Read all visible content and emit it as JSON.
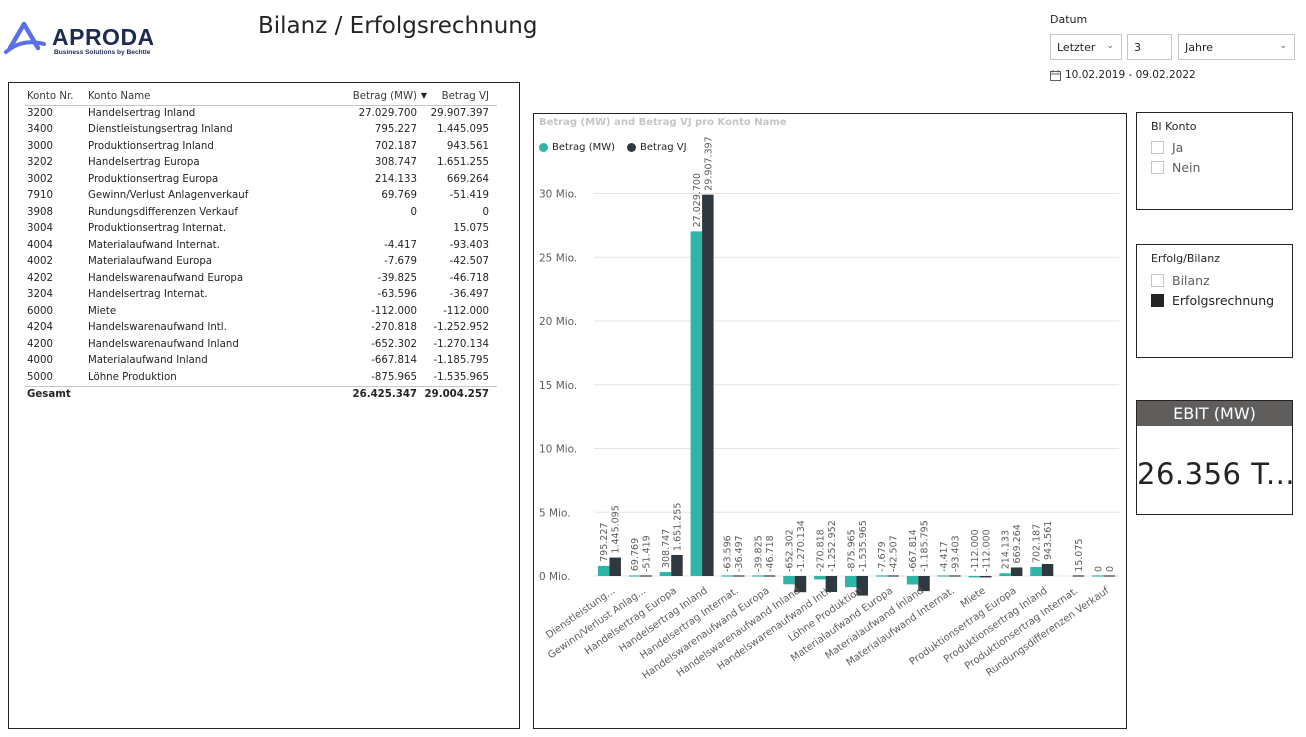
{
  "logo": {
    "name": "APRODA",
    "subtitle": "Business Solutions by Bechtle"
  },
  "page_title": "Bilanz / Erfolgsrechnung",
  "date_filter": {
    "label": "Datum",
    "mode": "Letzter",
    "number": "3",
    "unit": "Jahre",
    "range": "10.02.2019 - 09.02.2022"
  },
  "table": {
    "columns": [
      "Konto Nr.",
      "Konto Name",
      "Betrag (MW)",
      "Betrag VJ"
    ],
    "rows": [
      {
        "nr": "3200",
        "name": "Handelsertrag Inland",
        "mw": "27.029.700",
        "vj": "29.907.397"
      },
      {
        "nr": "3400",
        "name": "Dienstleistungsertrag Inland",
        "mw": "795.227",
        "vj": "1.445.095"
      },
      {
        "nr": "3000",
        "name": "Produktionsertrag Inland",
        "mw": "702.187",
        "vj": "943.561"
      },
      {
        "nr": "3202",
        "name": "Handelsertrag Europa",
        "mw": "308.747",
        "vj": "1.651.255"
      },
      {
        "nr": "3002",
        "name": "Produktionsertrag Europa",
        "mw": "214.133",
        "vj": "669.264"
      },
      {
        "nr": "7910",
        "name": "Gewinn/Verlust Anlagenverkauf",
        "mw": "69.769",
        "vj": "-51.419"
      },
      {
        "nr": "3908",
        "name": "Rundungsdifferenzen Verkauf",
        "mw": "0",
        "vj": "0"
      },
      {
        "nr": "3004",
        "name": "Produktionsertrag Internat.",
        "mw": "",
        "vj": "15.075"
      },
      {
        "nr": "4004",
        "name": "Materialaufwand Internat.",
        "mw": "-4.417",
        "vj": "-93.403"
      },
      {
        "nr": "4002",
        "name": "Materialaufwand Europa",
        "mw": "-7.679",
        "vj": "-42.507"
      },
      {
        "nr": "4202",
        "name": "Handelswarenaufwand Europa",
        "mw": "-39.825",
        "vj": "-46.718"
      },
      {
        "nr": "3204",
        "name": "Handelsertrag Internat.",
        "mw": "-63.596",
        "vj": "-36.497"
      },
      {
        "nr": "6000",
        "name": "Miete",
        "mw": "-112.000",
        "vj": "-112.000"
      },
      {
        "nr": "4204",
        "name": "Handelswarenaufwand Intl.",
        "mw": "-270.818",
        "vj": "-1.252.952"
      },
      {
        "nr": "4200",
        "name": "Handelswarenaufwand Inland",
        "mw": "-652.302",
        "vj": "-1.270.134"
      },
      {
        "nr": "4000",
        "name": "Materialaufwand Inland",
        "mw": "-667.814",
        "vj": "-1.185.795"
      },
      {
        "nr": "5000",
        "name": "Löhne Produktion",
        "mw": "-875.965",
        "vj": "-1.535.965"
      }
    ],
    "total": {
      "label": "Gesamt",
      "mw": "26.425.347",
      "vj": "29.004.257"
    }
  },
  "slicer_konto": {
    "title": "Bl Konto",
    "options": [
      {
        "label": "Ja",
        "checked": false
      },
      {
        "label": "Nein",
        "checked": false
      }
    ]
  },
  "slicer_erfolg": {
    "title": "Erfolg/Bilanz",
    "options": [
      {
        "label": "Bilanz",
        "checked": false
      },
      {
        "label": "Erfolgsrechnung",
        "checked": true
      }
    ]
  },
  "kpi": {
    "title": "EBIT (MW)",
    "value": "26.356 T..."
  },
  "colors": {
    "mw": "#2fb5a8",
    "vj": "#2e393f",
    "frame": "#252423"
  },
  "chart_data": {
    "type": "bar",
    "title": "Betrag (MW) and Betrag VJ pro Konto Name",
    "y_ticks": [
      "0 Mio.",
      "5 Mio.",
      "10 Mio.",
      "15 Mio.",
      "20 Mio.",
      "25 Mio.",
      "30 Mio."
    ],
    "ylim": [
      -1.6,
      32
    ],
    "categories": [
      "Dienstleistung...",
      "Gewinn/Verlust Anlag...",
      "Handelsertrag Europa",
      "Handelsertrag Inland",
      "Handelsertrag Internat.",
      "Handelswarenaufwand Europa",
      "Handelswarenaufwand Inland",
      "Handelswarenaufwand Intl.",
      "Löhne Produktion",
      "Materialaufwand Europa",
      "Materialaufwand Inland",
      "Materialaufwand Internat.",
      "Miete",
      "Produktionsertrag Europa",
      "Produktionsertrag Inland",
      "Produktionsertrag Internat.",
      "Rundungsdifferenzen Verkauf"
    ],
    "series": [
      {
        "name": "Betrag (MW)",
        "values": [
          0.795227,
          0.069769,
          0.308747,
          27.0297,
          -0.063596,
          -0.039825,
          -0.652302,
          -0.270818,
          -0.875965,
          -0.007679,
          -0.667814,
          -0.004417,
          -0.112,
          0.214133,
          0.702187,
          null,
          0
        ],
        "labels": [
          "795.227",
          "69.769",
          "308.747",
          "27.029.700",
          "-63.596",
          "-39.825",
          "-652.302",
          "-270.818",
          "-875.965",
          "-7.679",
          "-667.814",
          "-4.417",
          "-112.000",
          "214.133",
          "702.187",
          "",
          "0"
        ]
      },
      {
        "name": "Betrag VJ",
        "values": [
          1.445095,
          -0.051419,
          1.651255,
          29.907397,
          -0.036497,
          -0.046718,
          -1.270134,
          -1.252952,
          -1.535965,
          -0.042507,
          -1.185795,
          -0.093403,
          -0.112,
          0.669264,
          0.943561,
          0.015075,
          0
        ],
        "labels": [
          "1.445.095",
          "-51.419",
          "1.651.255",
          "29.907.397",
          "-36.497",
          "-46.718",
          "-1.270.134",
          "-1.252.952",
          "-1.535.965",
          "-42.507",
          "-1.185.795",
          "-93.403",
          "-112.000",
          "669.264",
          "943.561",
          "15.075",
          "0"
        ]
      }
    ]
  }
}
